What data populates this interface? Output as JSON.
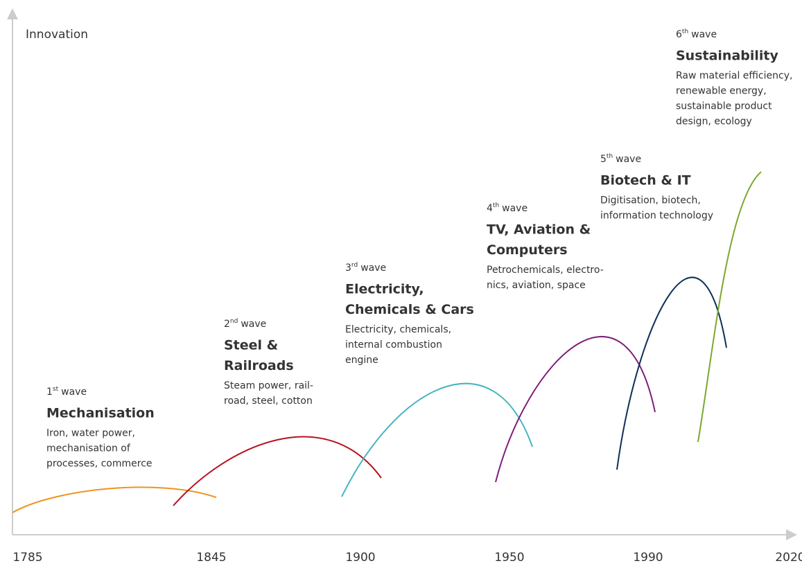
{
  "axis": {
    "y_label": "Innovation",
    "x_labels": [
      "1785",
      "1845",
      "1900",
      "1950",
      "1990",
      "2020"
    ]
  },
  "waves": [
    {
      "ordinal": "1",
      "suffix": "st",
      "word": "wave",
      "title": [
        "Mechanisation"
      ],
      "description": [
        "Iron, water power,",
        "mechanisation of",
        "processes, commerce"
      ],
      "color": "#f0921e"
    },
    {
      "ordinal": "2",
      "suffix": "nd",
      "word": "wave",
      "title": [
        "Steel &",
        "Railroads"
      ],
      "description": [
        "Steam power, rail-",
        "road, steel, cotton"
      ],
      "color": "#b5121b"
    },
    {
      "ordinal": "3",
      "suffix": "rd",
      "word": "wave",
      "title": [
        "Electricity,",
        "Chemicals & Cars"
      ],
      "description": [
        "Electricity, chemicals,",
        "internal combustion",
        "engine"
      ],
      "color": "#45b5c1"
    },
    {
      "ordinal": "4",
      "suffix": "th",
      "word": "wave",
      "title": [
        "TV, Aviation &",
        "Computers"
      ],
      "description": [
        "Petrochemicals, electro-",
        "nics, aviation, space"
      ],
      "color": "#7d1e7a"
    },
    {
      "ordinal": "5",
      "suffix": "th",
      "word": "wave",
      "title": [
        "Biotech & IT"
      ],
      "description": [
        "Digitisation, biotech,",
        "information technology"
      ],
      "color": "#0d2f58"
    },
    {
      "ordinal": "6",
      "suffix": "th",
      "word": "wave",
      "title": [
        "Sustainability"
      ],
      "description": [
        "Raw material efficiency,",
        "renewable energy,",
        "sustainable product",
        "design, ecology"
      ],
      "color": "#7aa82e"
    }
  ]
}
